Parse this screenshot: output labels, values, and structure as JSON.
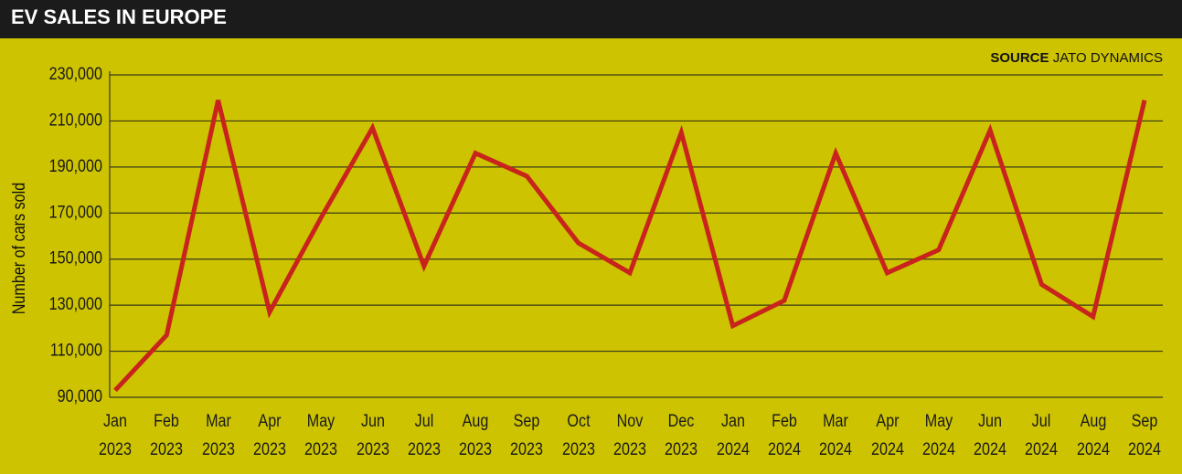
{
  "chart_data": {
    "type": "line",
    "title": "EV SALES IN EUROPE",
    "source_label": "SOURCE",
    "source": "JATO DYNAMICS",
    "y_label": "Number of cars sold",
    "categories": [
      "Jan 2023",
      "Feb 2023",
      "Mar 2023",
      "Apr 2023",
      "May 2023",
      "Jun 2023",
      "Jul 2023",
      "Aug 2023",
      "Sep 2023",
      "Oct 2023",
      "Nov 2023",
      "Dec 2023",
      "Jan 2024",
      "Feb 2024",
      "Mar 2024",
      "Apr 2024",
      "May 2024",
      "Jun 2024",
      "Jul 2024",
      "Aug 2024",
      "Sep 2024"
    ],
    "values": [
      93000,
      117000,
      219000,
      127000,
      168000,
      207000,
      147000,
      196000,
      186000,
      157000,
      144000,
      205000,
      121000,
      132000,
      196000,
      144000,
      154000,
      206000,
      139000,
      125000,
      219000
    ],
    "color": "#c8231c",
    "ylim": [
      90000,
      230000
    ],
    "yticks": [
      {
        "value": 90000,
        "label": "90,000"
      },
      {
        "value": 110000,
        "label": "110,000"
      },
      {
        "value": 130000,
        "label": "130,000"
      },
      {
        "value": 150000,
        "label": "150,000"
      },
      {
        "value": 170000,
        "label": "170,000"
      },
      {
        "value": 190000,
        "label": "190,000"
      },
      {
        "value": 210000,
        "label": "210,000"
      },
      {
        "value": 230000,
        "label": "230,000"
      }
    ],
    "grid": true
  }
}
